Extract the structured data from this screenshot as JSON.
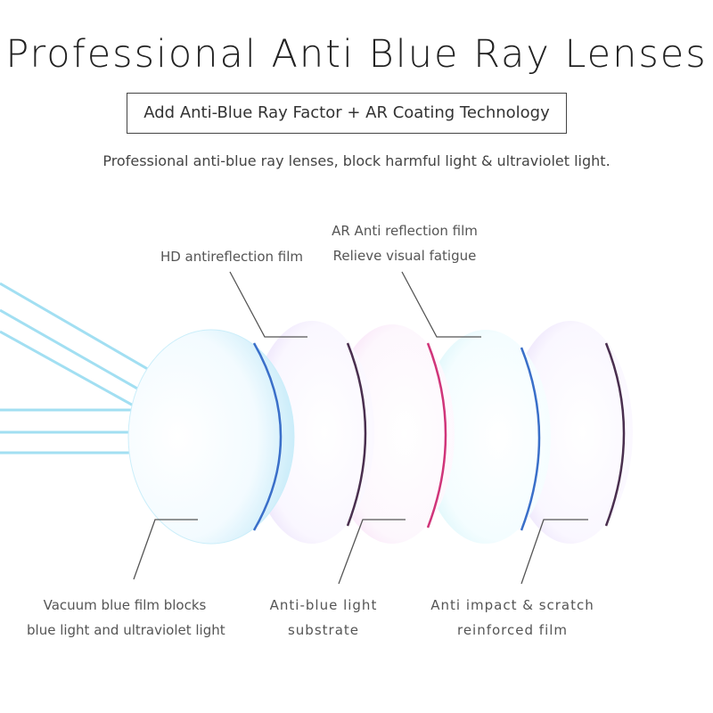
{
  "title": "Professional Anti Blue Ray Lenses",
  "boxed_subtitle": "Add Anti-Blue Ray Factor + AR Coating Technology",
  "description": "Professional anti-blue ray lenses, block harmful light & ultraviolet light.",
  "labels": {
    "hd_film": "HD antireflection film",
    "ar_film_line1": "AR Anti reflection film",
    "ar_film_line2": "Relieve visual fatigue",
    "vacuum_line1": "Vacuum blue film blocks",
    "vacuum_line2": "blue light and ultraviolet light",
    "substrate_line1": "Anti-blue light",
    "substrate_line2": "substrate",
    "impact_line1": "Anti impact & scratch",
    "impact_line2": "reinforced film"
  },
  "colors": {
    "ray": "#7fd3ee",
    "edge_blue": "#3a6fc9",
    "edge_dark": "#4a2f4f",
    "edge_pink": "#d0357a"
  }
}
